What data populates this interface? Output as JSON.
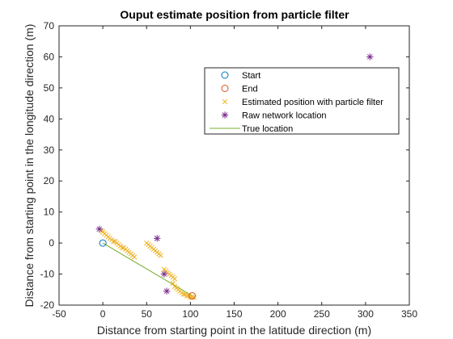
{
  "chart_data": {
    "type": "scatter",
    "title": "Ouput estimate position from particle filter",
    "xlabel": "Distance from starting point in the latitude direction (m)",
    "ylabel": "Distance from starting point in the longitude direction (m)",
    "xlim": [
      -50,
      350
    ],
    "ylim": [
      -20,
      70
    ],
    "xticks": [
      -50,
      0,
      50,
      100,
      150,
      200,
      250,
      300,
      350
    ],
    "yticks": [
      -20,
      -10,
      0,
      10,
      20,
      30,
      40,
      50,
      60,
      70
    ],
    "grid": false,
    "legend_position": "top-right",
    "series": [
      {
        "name": "Start",
        "marker": "circle",
        "color": "#0072BD",
        "points": [
          [
            0,
            0
          ]
        ]
      },
      {
        "name": "End",
        "marker": "circle",
        "color": "#D95319",
        "points": [
          [
            102,
            -17
          ]
        ]
      },
      {
        "name": "Estimated position with particle filter",
        "marker": "x",
        "color": "#EDB120",
        "points": [
          [
            -1,
            4
          ],
          [
            0,
            3.5
          ],
          [
            2,
            3
          ],
          [
            4,
            2.5
          ],
          [
            6,
            2
          ],
          [
            8,
            1.5
          ],
          [
            10,
            1
          ],
          [
            12,
            0.5
          ],
          [
            14,
            0.5
          ],
          [
            16,
            0
          ],
          [
            18,
            -0.5
          ],
          [
            20,
            -1
          ],
          [
            22,
            -1.5
          ],
          [
            24,
            -1.5
          ],
          [
            26,
            -2
          ],
          [
            28,
            -2.5
          ],
          [
            30,
            -3
          ],
          [
            32,
            -3.5
          ],
          [
            34,
            -4
          ],
          [
            36,
            -4.5
          ],
          [
            50,
            0
          ],
          [
            52,
            -0.5
          ],
          [
            54,
            -1
          ],
          [
            56,
            -1.5
          ],
          [
            58,
            -2
          ],
          [
            60,
            -2.5
          ],
          [
            62,
            -3
          ],
          [
            64,
            -3.5
          ],
          [
            66,
            -4
          ],
          [
            70,
            -8.5
          ],
          [
            72,
            -9
          ],
          [
            74,
            -9.5
          ],
          [
            76,
            -10
          ],
          [
            78,
            -10.5
          ],
          [
            80,
            -11
          ],
          [
            82,
            -11.5
          ],
          [
            80,
            -13
          ],
          [
            82,
            -14
          ],
          [
            84,
            -14.5
          ],
          [
            86,
            -15
          ],
          [
            88,
            -15.5
          ],
          [
            90,
            -16
          ],
          [
            92,
            -16.5
          ],
          [
            94,
            -16.5
          ],
          [
            96,
            -17
          ],
          [
            98,
            -17
          ],
          [
            100,
            -17.5
          ],
          [
            102,
            -17.5
          ],
          [
            104,
            -17.5
          ]
        ]
      },
      {
        "name": "Raw network location",
        "marker": "star",
        "color": "#7E2F8E",
        "points": [
          [
            -4,
            4.5
          ],
          [
            62,
            1.5
          ],
          [
            70,
            -10
          ],
          [
            73,
            -15.5
          ],
          [
            305,
            60
          ]
        ]
      },
      {
        "name": "True location",
        "marker": "line",
        "color": "#77AC30",
        "points": [
          [
            0,
            0
          ],
          [
            102,
            -17
          ]
        ]
      }
    ]
  }
}
